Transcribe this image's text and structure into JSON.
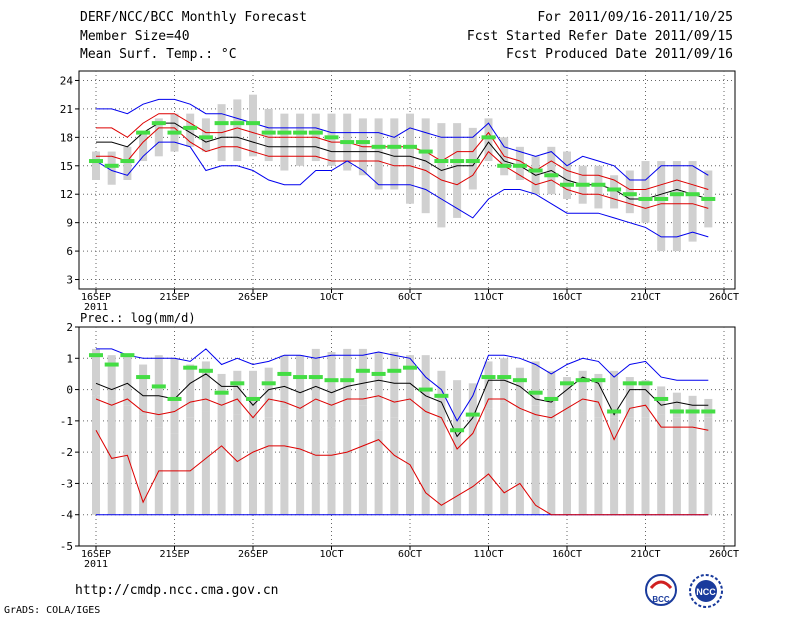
{
  "header": {
    "line1_left": "DERF/NCC/BCC Monthly Forecast",
    "line2_left": "Member Size=40",
    "line3_left": "Mean Surf. Temp.: °C",
    "line1_right": "For 2011/09/16-2011/10/25",
    "line2_right": "Fcst Started Refer Date 2011/09/15",
    "line3_right": "Fcst Produced Date 2011/09/16"
  },
  "footer": {
    "url": "http://cmdp.ncc.cma.gov.cn",
    "grads": "GrADS: COLA/IGES",
    "logo_left_text": "BCC",
    "logo_right_text": "NCC"
  },
  "colors": {
    "box": "#d0d0d0",
    "green": "#44dd44",
    "blue": "#0000ee",
    "red": "#dd0000",
    "black": "#000000",
    "grid": "#666666"
  },
  "chart_data": [
    {
      "type": "line",
      "title": "Mean Surf. Temp.: °C",
      "x_tick_labels": [
        "16SEP",
        "21SEP",
        "26SEP",
        "1OCT",
        "6OCT",
        "11OCT",
        "16OCT",
        "21OCT",
        "26OCT"
      ],
      "x_year_label": "2011",
      "ylim": [
        2,
        25
      ],
      "yticks": [
        3,
        6,
        9,
        12,
        15,
        18,
        21,
        24
      ],
      "series": {
        "box_low": [
          13.5,
          13.0,
          13.5,
          15.5,
          16.0,
          16.5,
          17.0,
          16.5,
          15.5,
          15.5,
          16.0,
          15.5,
          14.5,
          15.0,
          15.5,
          15.0,
          14.5,
          14.0,
          12.5,
          12.5,
          11.0,
          10.0,
          8.5,
          9.5,
          12.5,
          15.5,
          14.0,
          13.5,
          12.0,
          12.0,
          11.5,
          11.0,
          10.5,
          10.5,
          10.0,
          9.0,
          6.0,
          6.0,
          7.0,
          8.5
        ],
        "box_high": [
          16.5,
          16.5,
          17.0,
          18.5,
          20.0,
          20.5,
          20.5,
          20.0,
          21.5,
          22.0,
          22.5,
          21.0,
          20.5,
          20.5,
          20.5,
          20.5,
          20.5,
          20.0,
          20.0,
          20.0,
          20.5,
          20.0,
          19.5,
          19.5,
          19.0,
          20.0,
          18.0,
          17.0,
          16.0,
          17.0,
          16.5,
          15.0,
          15.0,
          14.0,
          14.5,
          15.5,
          15.5,
          15.5,
          15.5,
          14.5
        ],
        "green": [
          15.5,
          15.0,
          15.5,
          18.5,
          19.5,
          18.5,
          19.0,
          18.0,
          19.5,
          19.5,
          19.5,
          18.5,
          18.5,
          18.5,
          18.5,
          18.0,
          17.5,
          17.5,
          17.0,
          17.0,
          17.0,
          16.5,
          15.5,
          15.5,
          15.5,
          18.0,
          15.0,
          15.0,
          14.5,
          14.0,
          13.0,
          13.0,
          13.0,
          12.5,
          12.0,
          11.5,
          11.5,
          12.0,
          12.0,
          11.5
        ],
        "max": [
          21.0,
          21.0,
          20.5,
          21.5,
          22.0,
          22.0,
          21.5,
          20.5,
          20.5,
          20.0,
          19.5,
          19.0,
          19.0,
          19.0,
          19.0,
          18.5,
          18.5,
          18.5,
          18.5,
          18.0,
          19.0,
          18.5,
          18.0,
          18.0,
          18.0,
          19.5,
          17.0,
          16.5,
          16.0,
          16.5,
          15.0,
          16.0,
          15.5,
          15.0,
          13.5,
          13.5,
          15.0,
          15.0,
          15.0,
          14.0
        ],
        "p90": [
          19.0,
          19.0,
          18.0,
          19.5,
          20.5,
          20.5,
          19.5,
          18.5,
          18.5,
          19.0,
          18.5,
          18.0,
          18.0,
          18.0,
          18.0,
          17.5,
          17.5,
          17.0,
          17.0,
          17.0,
          17.0,
          16.5,
          15.5,
          16.5,
          16.5,
          18.5,
          16.0,
          15.5,
          14.5,
          15.5,
          14.5,
          14.0,
          14.0,
          13.5,
          12.5,
          12.5,
          13.0,
          13.5,
          13.0,
          12.5
        ],
        "mean": [
          17.5,
          17.5,
          17.0,
          18.5,
          19.5,
          19.5,
          18.5,
          17.5,
          18.0,
          18.0,
          17.5,
          17.0,
          17.0,
          17.0,
          17.0,
          16.5,
          16.5,
          16.5,
          16.5,
          16.0,
          16.0,
          15.5,
          14.5,
          15.0,
          15.0,
          17.5,
          15.5,
          15.0,
          14.0,
          14.5,
          13.5,
          13.0,
          13.0,
          12.5,
          11.5,
          11.5,
          12.0,
          12.5,
          12.0,
          11.5
        ],
        "p10": [
          16.0,
          16.0,
          15.5,
          17.5,
          19.0,
          19.0,
          17.5,
          16.5,
          17.0,
          17.0,
          16.5,
          16.0,
          16.0,
          16.0,
          16.0,
          15.5,
          15.5,
          15.5,
          15.5,
          15.0,
          15.0,
          14.5,
          13.5,
          13.0,
          14.0,
          16.5,
          15.0,
          14.0,
          13.0,
          13.5,
          12.5,
          12.0,
          12.0,
          11.5,
          11.0,
          10.5,
          11.0,
          11.0,
          11.0,
          10.5
        ],
        "min": [
          15.5,
          14.5,
          14.0,
          16.0,
          17.5,
          17.5,
          17.0,
          14.5,
          15.0,
          15.0,
          14.5,
          13.5,
          13.0,
          13.0,
          14.5,
          14.5,
          15.5,
          14.5,
          13.0,
          13.0,
          13.0,
          12.5,
          11.5,
          10.5,
          9.5,
          11.5,
          12.5,
          12.5,
          12.0,
          11.0,
          10.0,
          10.0,
          10.0,
          9.5,
          9.0,
          8.5,
          7.5,
          7.5,
          8.0,
          7.5
        ]
      }
    },
    {
      "type": "line",
      "title": "Prec.: log(mm/d)",
      "x_tick_labels": [
        "16SEP",
        "21SEP",
        "26SEP",
        "1OCT",
        "6OCT",
        "11OCT",
        "16OCT",
        "21OCT",
        "26OCT"
      ],
      "x_year_label": "2011",
      "ylim": [
        -5,
        2
      ],
      "yticks": [
        -5,
        -4,
        -3,
        -2,
        -1,
        0,
        1,
        2
      ],
      "series": {
        "box_low": [
          -0.2,
          -0.3,
          -0.5,
          -0.8,
          -1.2,
          -1.4,
          -0.9,
          -0.7,
          -1.0,
          -0.8,
          -0.8,
          -0.9,
          -0.6,
          -0.7,
          -1.5,
          -1.2,
          -1.1,
          -0.5,
          -1.3,
          -0.9,
          -1.0,
          -1.1,
          -1.1,
          -1.0,
          -0.8,
          -0.6,
          -0.4,
          -0.6,
          -0.5,
          -0.6,
          -0.7,
          -0.7,
          -0.9,
          -0.9,
          -0.9,
          -0.9,
          -0.8,
          -0.9,
          -1.0,
          -0.9
        ],
        "box_high": [
          1.3,
          1.1,
          1.1,
          0.8,
          1.1,
          1.0,
          0.8,
          0.9,
          0.5,
          0.6,
          0.6,
          0.7,
          1.1,
          1.1,
          1.3,
          1.2,
          1.3,
          1.3,
          1.2,
          1.2,
          1.1,
          1.1,
          0.6,
          0.3,
          0.2,
          0.9,
          1.0,
          0.7,
          0.9,
          0.6,
          0.4,
          0.6,
          0.5,
          0.6,
          0.4,
          0.3,
          0.1,
          -0.1,
          -0.2,
          -0.3
        ],
        "whisk_low": [
          -4,
          -4,
          -4,
          -4,
          -4,
          -4,
          -4,
          -4,
          -4,
          -4,
          -4,
          -4,
          -4,
          -4,
          -4,
          -4,
          -4,
          -4,
          -4,
          -4,
          -4,
          -4,
          -4,
          -4,
          -4,
          -4,
          -4,
          -4,
          -4,
          -4,
          -4,
          -4,
          -4,
          -4,
          -4,
          -4,
          -4,
          -4,
          -4,
          -4
        ],
        "green": [
          1.1,
          0.8,
          1.1,
          0.4,
          0.1,
          -0.3,
          0.7,
          0.6,
          -0.1,
          0.2,
          -0.3,
          0.2,
          0.5,
          0.4,
          0.4,
          0.3,
          0.3,
          0.6,
          0.5,
          0.6,
          0.7,
          0.0,
          -0.2,
          -1.3,
          -0.8,
          0.4,
          0.4,
          0.3,
          -0.1,
          -0.3,
          0.2,
          0.3,
          0.3,
          -0.7,
          0.2,
          0.2,
          -0.3,
          -0.7,
          -0.7,
          -0.7
        ],
        "max": [
          1.3,
          1.3,
          1.1,
          1.0,
          1.0,
          1.0,
          0.9,
          1.3,
          0.8,
          1.0,
          0.8,
          0.9,
          1.1,
          1.1,
          1.0,
          1.1,
          1.1,
          1.1,
          1.2,
          1.1,
          1.0,
          0.4,
          0.0,
          -1.0,
          -0.2,
          1.1,
          1.1,
          1.0,
          0.8,
          0.5,
          0.8,
          1.0,
          0.9,
          0.4,
          0.8,
          0.9,
          0.4,
          0.3,
          0.3,
          0.3
        ],
        "mean": [
          0.2,
          0.0,
          0.2,
          -0.2,
          -0.2,
          -0.3,
          0.2,
          0.5,
          0.1,
          0.1,
          -0.5,
          0.0,
          0.1,
          -0.1,
          0.1,
          -0.1,
          0.1,
          0.2,
          0.3,
          0.2,
          0.2,
          -0.2,
          -0.4,
          -1.5,
          -0.9,
          0.3,
          0.3,
          0.1,
          -0.3,
          -0.4,
          0.0,
          0.4,
          0.2,
          -0.8,
          0.0,
          0.0,
          -0.5,
          -0.4,
          -0.5,
          -0.5
        ],
        "p10": [
          -0.3,
          -0.5,
          -0.3,
          -0.7,
          -0.8,
          -0.7,
          -0.4,
          -0.3,
          -0.5,
          -0.3,
          -0.9,
          -0.3,
          -0.4,
          -0.6,
          -0.3,
          -0.5,
          -0.3,
          -0.3,
          -0.2,
          -0.4,
          -0.3,
          -0.7,
          -0.9,
          -1.9,
          -1.4,
          -0.3,
          -0.3,
          -0.6,
          -0.8,
          -0.9,
          -0.6,
          -0.3,
          -0.4,
          -1.6,
          -0.6,
          -0.5,
          -1.2,
          -1.2,
          -1.2,
          -1.3
        ],
        "min": [
          -1.3,
          -2.2,
          -2.1,
          -3.6,
          -2.6,
          -2.6,
          -2.6,
          -2.2,
          -1.8,
          -2.3,
          -2.0,
          -1.8,
          -1.8,
          -1.9,
          -2.1,
          -2.1,
          -2.0,
          -1.8,
          -1.6,
          -2.1,
          -2.4,
          -3.3,
          -3.7,
          -3.4,
          -3.1,
          -2.7,
          -3.3,
          -3.0,
          -3.7,
          -4.0,
          -4,
          -4,
          -4,
          -4,
          -4,
          -4,
          -4,
          -4,
          -4,
          -4
        ]
      }
    }
  ]
}
